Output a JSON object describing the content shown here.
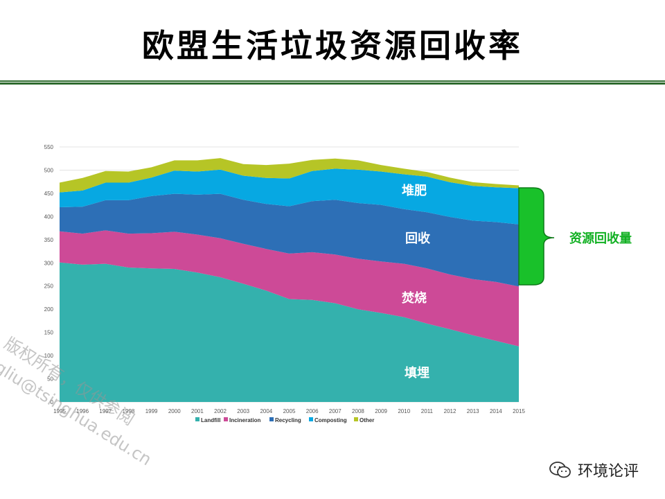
{
  "title": "欧盟生活垃圾资源回收率",
  "colors": {
    "landfill": "#34b1ad",
    "incineration": "#cd4a97",
    "recycling": "#2d6fb6",
    "composting": "#07a8e2",
    "other": "#b6c526",
    "brace": "#19c12a",
    "rule": "#2e6b2e"
  },
  "chart_data": {
    "type": "area",
    "stacked": true,
    "x": [
      "1995",
      "1996",
      "1997",
      "1998",
      "1999",
      "2000",
      "2001",
      "2002",
      "2003",
      "2004",
      "2005",
      "2006",
      "2007",
      "2008",
      "2009",
      "2010",
      "2011",
      "2012",
      "2013",
      "2014",
      "2015"
    ],
    "ylim": [
      0,
      550
    ],
    "yticks": [
      0,
      50,
      100,
      150,
      200,
      250,
      300,
      350,
      400,
      450,
      500,
      550
    ],
    "grid": true,
    "legend_position": "bottom",
    "series": [
      {
        "name": "Landfill",
        "values": [
          301,
          296,
          298,
          290,
          288,
          287,
          279,
          269,
          255,
          240,
          222,
          220,
          213,
          200,
          192,
          183,
          169,
          157,
          144,
          132,
          120
        ]
      },
      {
        "name": "Incineration",
        "values": [
          67,
          67,
          72,
          73,
          76,
          80,
          82,
          84,
          86,
          90,
          98,
          103,
          105,
          109,
          111,
          115,
          119,
          118,
          121,
          127,
          129
        ]
      },
      {
        "name": "Recycling",
        "values": [
          52,
          58,
          65,
          72,
          80,
          82,
          86,
          96,
          95,
          97,
          102,
          110,
          118,
          120,
          122,
          118,
          121,
          124,
          126,
          129,
          134
        ]
      },
      {
        "name": "Composting",
        "values": [
          32,
          35,
          38,
          38,
          40,
          50,
          50,
          52,
          52,
          56,
          60,
          65,
          67,
          72,
          72,
          75,
          77,
          75,
          75,
          75,
          78
        ]
      },
      {
        "name": "Other",
        "values": [
          21,
          27,
          25,
          24,
          22,
          22,
          24,
          25,
          25,
          28,
          32,
          24,
          22,
          20,
          14,
          12,
          10,
          10,
          8,
          7,
          6
        ]
      }
    ]
  },
  "annotations": {
    "composting": "堆肥",
    "recycling": "回收",
    "incineration": "焚烧",
    "landfill": "填埋",
    "brace": "资源回收量"
  },
  "watermark": [
    "版权所有，仅供参阅",
    "jgliu@tsinghua.edu.cn"
  ],
  "brand": {
    "icon": "wechat-icon",
    "text": "环境论评"
  }
}
